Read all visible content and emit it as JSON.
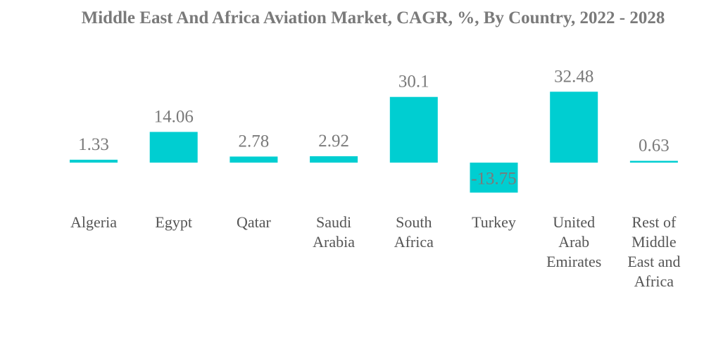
{
  "chart_data": {
    "type": "bar",
    "title": "Middle East And Africa Aviation Market, CAGR, %, By Country, 2022 - 2028",
    "xlabel": "",
    "ylabel": "",
    "categories": [
      "Algeria",
      "Egypt",
      "Qatar",
      "Saudi Arabia",
      "South Africa",
      "Turkey",
      "United Arab Emirates",
      "Rest of Middle East and Africa"
    ],
    "category_lines": [
      [
        "Algeria"
      ],
      [
        "Egypt"
      ],
      [
        "Qatar"
      ],
      [
        "Saudi",
        "Arabia"
      ],
      [
        "South",
        "Africa"
      ],
      [
        "Turkey"
      ],
      [
        "United",
        "Arab",
        "Emirates"
      ],
      [
        "Rest of",
        "Middle",
        "East and",
        "Africa"
      ]
    ],
    "values": [
      1.33,
      14.06,
      2.78,
      2.92,
      30.1,
      -13.75,
      32.48,
      0.63
    ],
    "value_labels": [
      "1.33",
      "14.06",
      "2.78",
      "2.92",
      "30.1",
      "-13.75",
      "32.48",
      "0.63"
    ],
    "ylim": [
      -13.75,
      32.48
    ],
    "grid": false,
    "legend": "none",
    "bar_color": "#00ced1"
  }
}
